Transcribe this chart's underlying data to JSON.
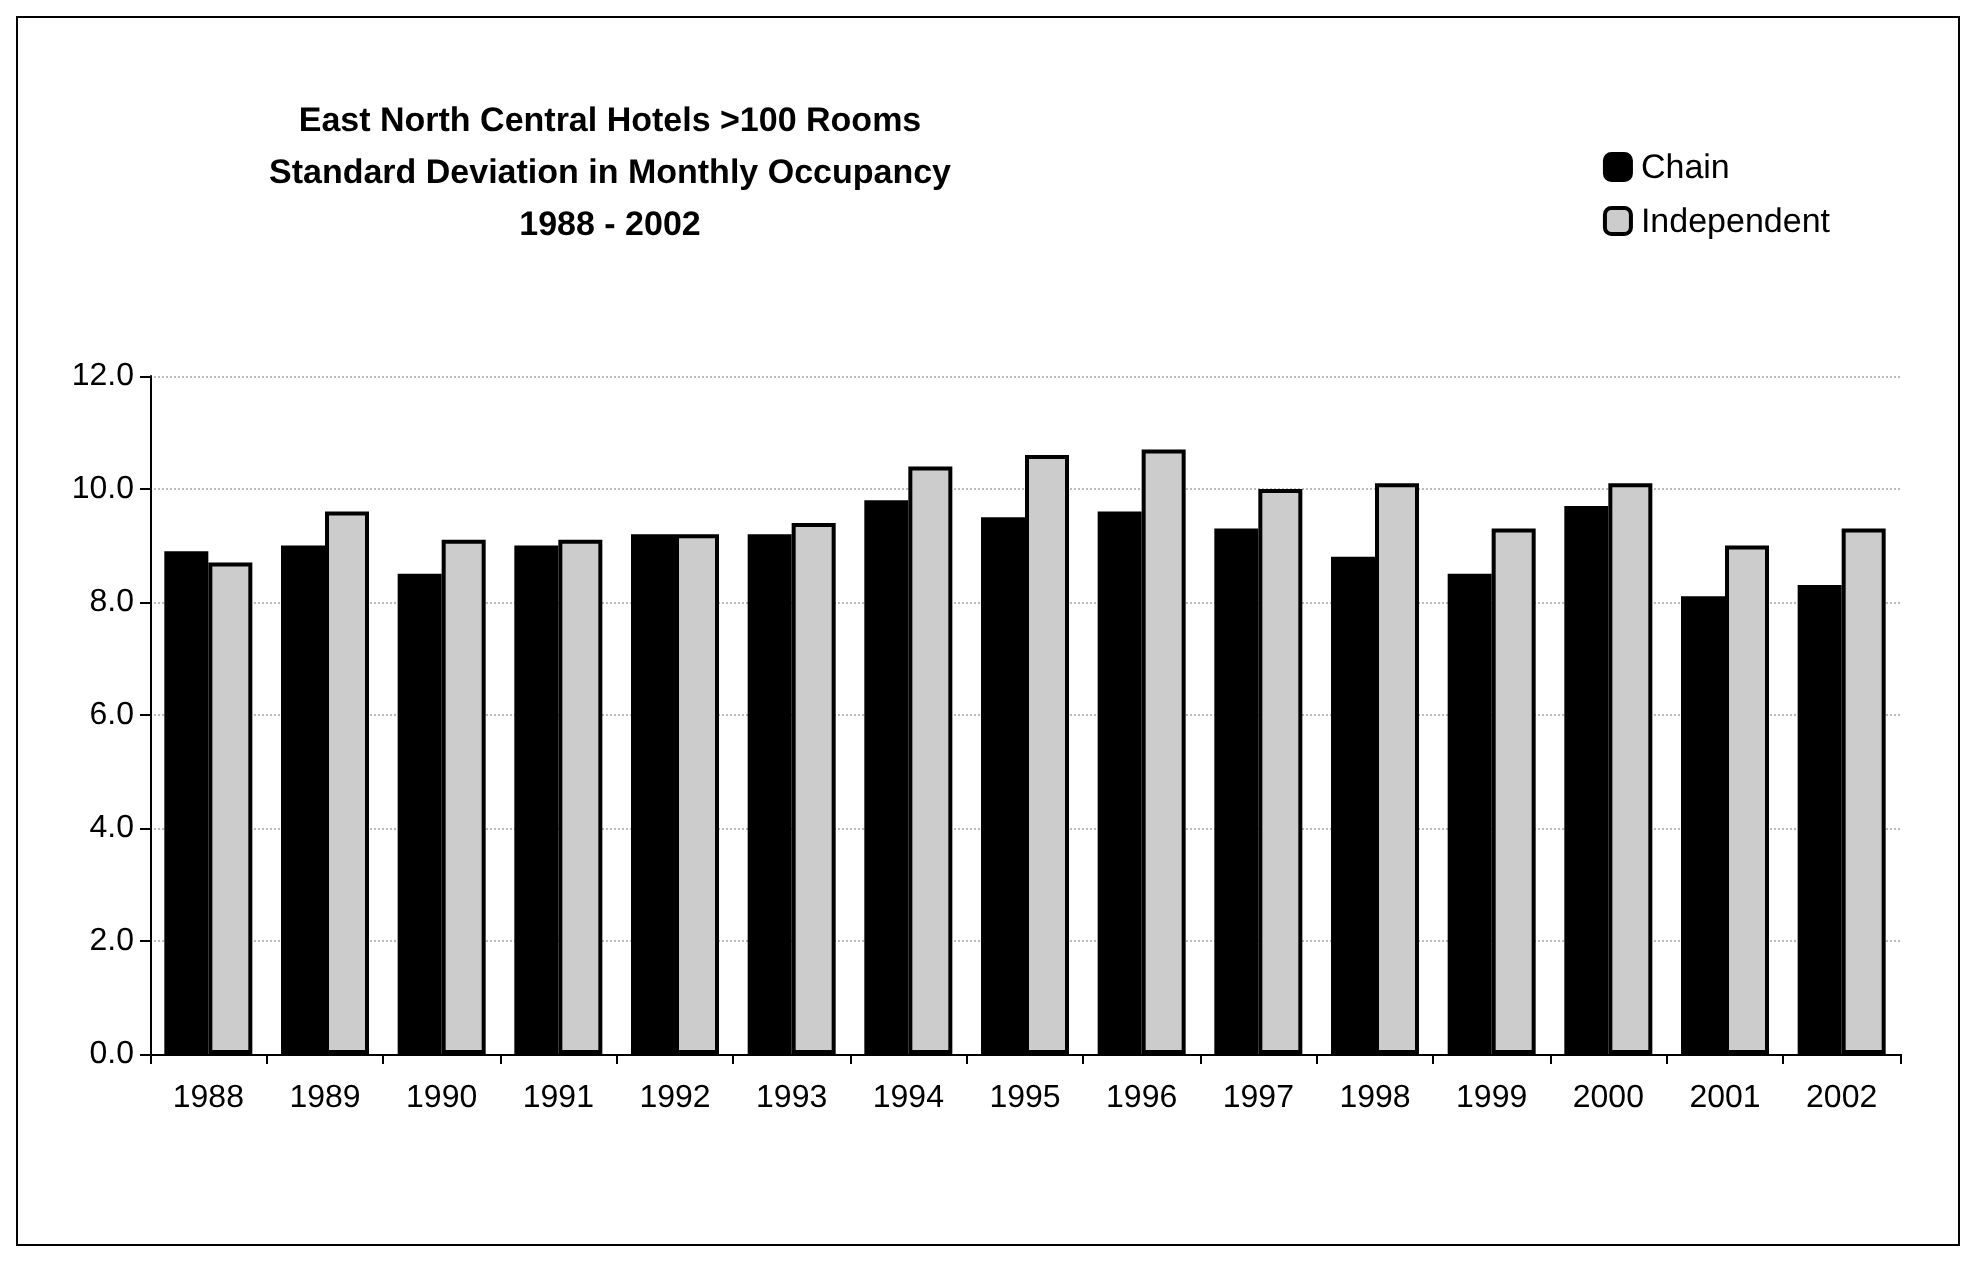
{
  "chart_data": {
    "type": "bar",
    "title": "East North Central Hotels >100 Rooms\nStandard Deviation in Monthly Occupancy\n1988 - 2002",
    "categories": [
      "1988",
      "1989",
      "1990",
      "1991",
      "1992",
      "1993",
      "1994",
      "1995",
      "1996",
      "1997",
      "1998",
      "1999",
      "2000",
      "2001",
      "2002"
    ],
    "series": [
      {
        "name": "Chain",
        "color": "#000000",
        "values": [
          8.9,
          9.0,
          8.5,
          9.0,
          9.2,
          9.2,
          9.8,
          9.5,
          9.6,
          9.3,
          8.8,
          8.5,
          9.7,
          8.1,
          8.3
        ]
      },
      {
        "name": "Independent",
        "color": "#cccccc",
        "values": [
          8.7,
          9.6,
          9.1,
          9.1,
          9.2,
          9.4,
          10.4,
          10.6,
          10.7,
          10.0,
          10.1,
          9.3,
          10.1,
          9.0,
          9.3
        ]
      }
    ],
    "ylim": [
      0,
      12
    ],
    "yticks": [
      {
        "value": 0,
        "label": "0.0"
      },
      {
        "value": 2,
        "label": "2.0"
      },
      {
        "value": 4,
        "label": "4.0"
      },
      {
        "value": 6,
        "label": "6.0"
      },
      {
        "value": 8,
        "label": "8.0"
      },
      {
        "value": 10,
        "label": "10.0"
      },
      {
        "value": 12,
        "label": "12.0"
      }
    ],
    "grid": "y",
    "legend": "top right"
  }
}
